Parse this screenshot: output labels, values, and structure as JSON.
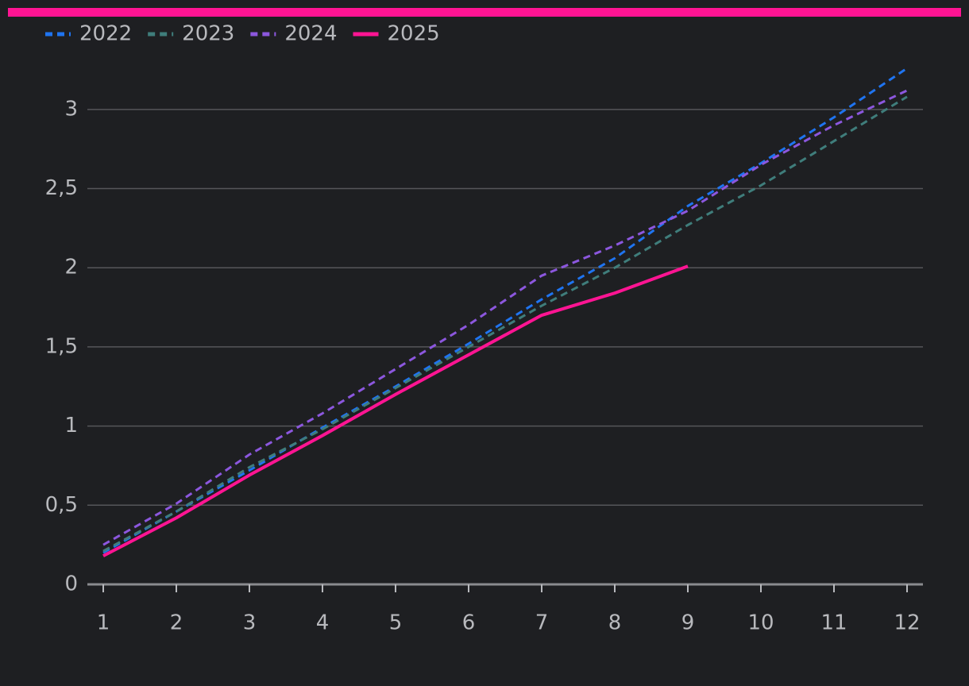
{
  "chart_data": {
    "type": "line",
    "x": [
      1,
      2,
      3,
      4,
      5,
      6,
      7,
      8,
      9,
      10,
      11,
      12
    ],
    "xlim": [
      1,
      12
    ],
    "xticks": [
      1,
      2,
      3,
      4,
      5,
      6,
      7,
      8,
      9,
      10,
      11,
      12
    ],
    "ylim": [
      0,
      3.3
    ],
    "yticks": [
      0,
      {
        "value": 0.5,
        "label": "0,5"
      },
      1,
      {
        "value": 1.5,
        "label": "1,5"
      },
      2,
      {
        "value": 2.5,
        "label": "2,5"
      },
      3
    ],
    "grid": true,
    "legend": "top-left",
    "series": [
      {
        "name": "2022",
        "color": "#1f74f0",
        "dashed": true,
        "values": [
          0.2,
          0.46,
          0.72,
          0.99,
          1.25,
          1.52,
          1.8,
          2.06,
          2.39,
          2.66,
          2.95,
          3.26
        ]
      },
      {
        "name": "2023",
        "color": "#3f7d7b",
        "dashed": true,
        "values": [
          0.21,
          0.46,
          0.74,
          0.98,
          1.24,
          1.5,
          1.76,
          2.0,
          2.27,
          2.52,
          2.8,
          3.08
        ]
      },
      {
        "name": "2024",
        "color": "#8c57de",
        "dashed": true,
        "values": [
          0.25,
          0.51,
          0.82,
          1.08,
          1.36,
          1.64,
          1.95,
          2.14,
          2.36,
          2.65,
          2.9,
          3.12
        ]
      },
      {
        "name": "2025",
        "color": "#ff1493",
        "dashed": false,
        "values": [
          0.18,
          0.42,
          0.69,
          0.94,
          1.2,
          1.45,
          1.7,
          1.84,
          2.01,
          null,
          null,
          null
        ]
      }
    ]
  }
}
